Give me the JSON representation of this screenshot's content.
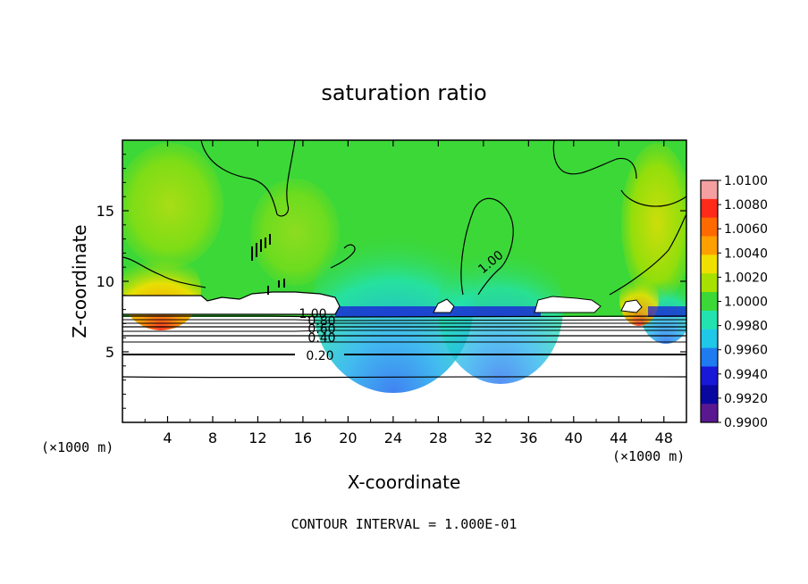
{
  "chart_data": {
    "type": "heatmap",
    "title": "saturation ratio",
    "xlabel": "X-coordinate",
    "ylabel": "Z-coordinate",
    "x_unit": "(×1000 m)",
    "z_unit": "(×1000 m)",
    "xlim": [
      0,
      50
    ],
    "ylim": [
      0,
      20
    ],
    "x_ticks": [
      "4",
      "8",
      "12",
      "16",
      "20",
      "24",
      "28",
      "32",
      "36",
      "40",
      "44",
      "48"
    ],
    "y_ticks": [
      "5",
      "10",
      "15"
    ],
    "contour_interval_text": "CONTOUR INTERVAL = 1.000E-01",
    "contour_labels": [
      "1.00",
      "0.80",
      "0.60",
      "0.40",
      "0.20",
      "1.00"
    ],
    "colorbar": {
      "labels": [
        "1.0100",
        "1.0080",
        "1.0060",
        "1.0040",
        "1.0020",
        "1.0000",
        "0.9980",
        "0.9960",
        "0.9940",
        "0.9920",
        "0.9900"
      ],
      "colors": [
        "#f4a0a0",
        "#ff2a1a",
        "#ff6a00",
        "#ffa000",
        "#f0e000",
        "#a8e000",
        "#3cd838",
        "#22e3b0",
        "#20c8e8",
        "#1e7cf0",
        "#1818d8",
        "#0808a0",
        "#5a1890"
      ]
    }
  }
}
